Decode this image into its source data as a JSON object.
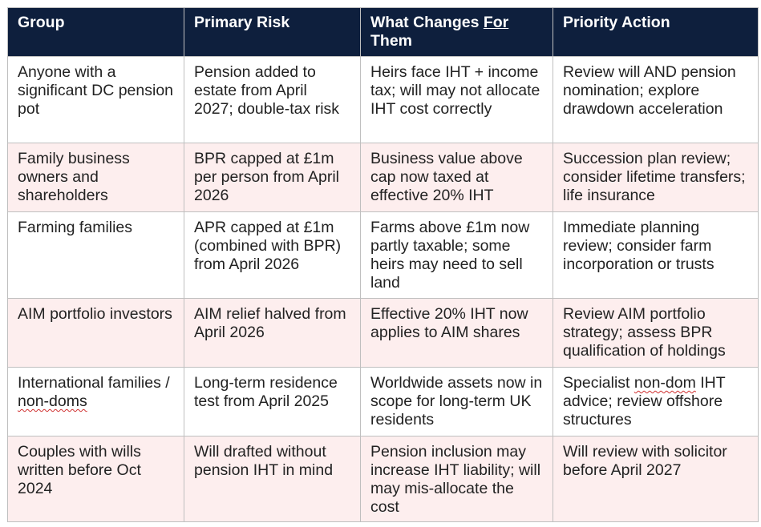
{
  "table": {
    "headers": {
      "group": "Group",
      "primary_risk": "Primary Risk",
      "what_changes_pre": "What Changes ",
      "what_changes_ul": "For",
      "what_changes_post": " Them",
      "priority_action": "Priority Action"
    },
    "rows": [
      {
        "group": "Anyone with a significant DC pension pot",
        "risk": "Pension added to estate from April 2027; double-tax risk",
        "changes": "Heirs face IHT + income tax; will may not allocate IHT cost correctly",
        "action": "Review will AND pension nomination; explore drawdown acceleration"
      },
      {
        "group": "Family business owners and shareholders",
        "risk": "BPR capped at £1m per person from April 2026",
        "changes": "Business value above cap now taxed at effective 20% IHT",
        "action": "Succession plan review; consider lifetime transfers; life insurance"
      },
      {
        "group": "Farming families",
        "risk": "APR capped at £1m (combined with BPR) from April 2026",
        "changes": "Farms above £1m now partly taxable; some heirs may need to sell land",
        "action": "Immediate planning review; consider farm incorporation or trusts"
      },
      {
        "group": "AIM portfolio investors",
        "risk": "AIM relief halved from April 2026",
        "changes": "Effective 20% IHT now applies to AIM shares",
        "action": "Review AIM portfolio strategy; assess BPR qualification of holdings"
      },
      {
        "group_pre": "International families / ",
        "group_sq": "non-doms",
        "risk": "Long-term residence test from April 2025",
        "changes": "Worldwide assets now in scope for long-term UK residents",
        "action_pre": "Specialist ",
        "action_sq": "non-dom",
        "action_post": " IHT advice; review offshore structures"
      },
      {
        "group": "Couples with wills written before Oct 2024",
        "risk": "Will drafted without pension IHT in mind",
        "changes": "Pension inclusion may increase IHT liability; will may mis-allocate the cost",
        "action": "Will review with solicitor before April 2027"
      }
    ]
  },
  "colors": {
    "header_bg": "#0e1f3d",
    "header_text": "#ffffff",
    "row_alt_bg": "#fdeeee",
    "border": "#bfbfbf",
    "spellcheck_squiggle": "#d03030"
  }
}
